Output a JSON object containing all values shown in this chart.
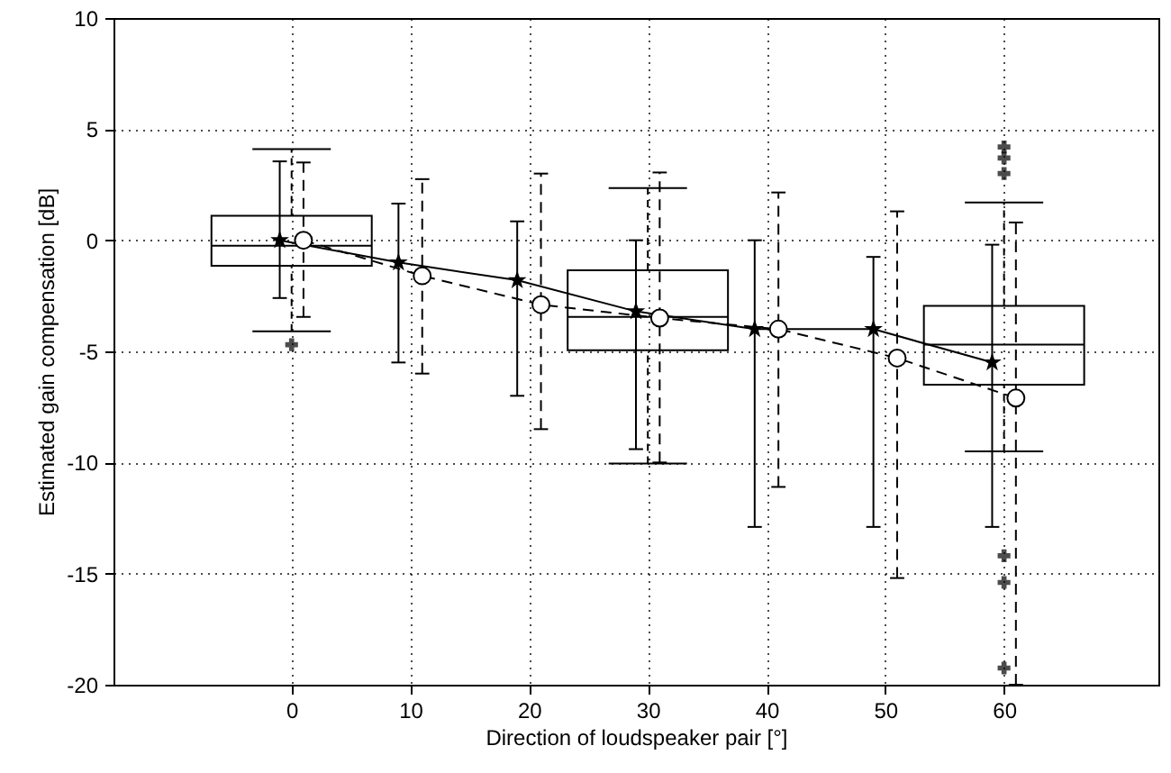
{
  "chart_data": {
    "type": "line",
    "xlabel": "Direction of loudspeaker pair [°]",
    "ylabel": "Estimated gain compensation [dB]",
    "xlim": [
      -15,
      73
    ],
    "xticks": [
      0,
      10,
      20,
      30,
      40,
      50,
      60
    ],
    "ylim": [
      -20,
      10
    ],
    "yticks": [
      -20,
      -15,
      -10,
      -5,
      0,
      5,
      10
    ],
    "grid": true,
    "series": [
      {
        "type": "box",
        "color": "#000000",
        "x": [
          0,
          30,
          60
        ],
        "boxes": [
          {
            "low": -4.1,
            "q1": -1.15,
            "median": -0.25,
            "q3": 1.1,
            "high": 4.1,
            "outliers": [
              -4.7
            ]
          },
          {
            "low": -10.05,
            "q1": -4.95,
            "median": -3.45,
            "q3": -1.35,
            "high": 2.35
          },
          {
            "low": -9.5,
            "q1": -6.5,
            "median": -4.7,
            "q3": -2.95,
            "high": 1.7,
            "outliers": [
              4.2,
              3.7,
              3.0,
              -14.2,
              -15.4,
              -19.25
            ]
          }
        ]
      },
      {
        "color": "#000000",
        "marker": "star",
        "line_style": "solid",
        "x": [
          -1,
          9,
          19,
          29,
          39,
          49,
          59
        ],
        "values": [
          0,
          -1.0,
          -1.8,
          -3.2,
          -4.0,
          -4.0,
          -5.5
        ],
        "errors": [
          [
            -2.6,
            3.55
          ],
          [
            -5.5,
            1.65
          ],
          [
            -7.0,
            0.85
          ],
          [
            -9.4,
            0
          ],
          [
            -12.9,
            0
          ],
          [
            -12.9,
            -0.75
          ],
          [
            -12.9,
            -0.2
          ]
        ]
      },
      {
        "color": "#000000",
        "marker": "circle",
        "line_style": "dashed",
        "x": [
          1,
          11,
          21,
          31,
          41,
          51,
          61
        ],
        "values": [
          0,
          -1.6,
          -2.9,
          -3.5,
          -4.0,
          -5.3,
          -7.1
        ],
        "errors": [
          [
            -3.45,
            3.5
          ],
          [
            -6.0,
            2.75
          ],
          [
            -8.5,
            3.0
          ],
          [
            -10.0,
            3.05
          ],
          [
            -11.1,
            2.15
          ],
          [
            -15.2,
            1.3
          ],
          [
            -20,
            0.8
          ]
        ]
      }
    ]
  }
}
